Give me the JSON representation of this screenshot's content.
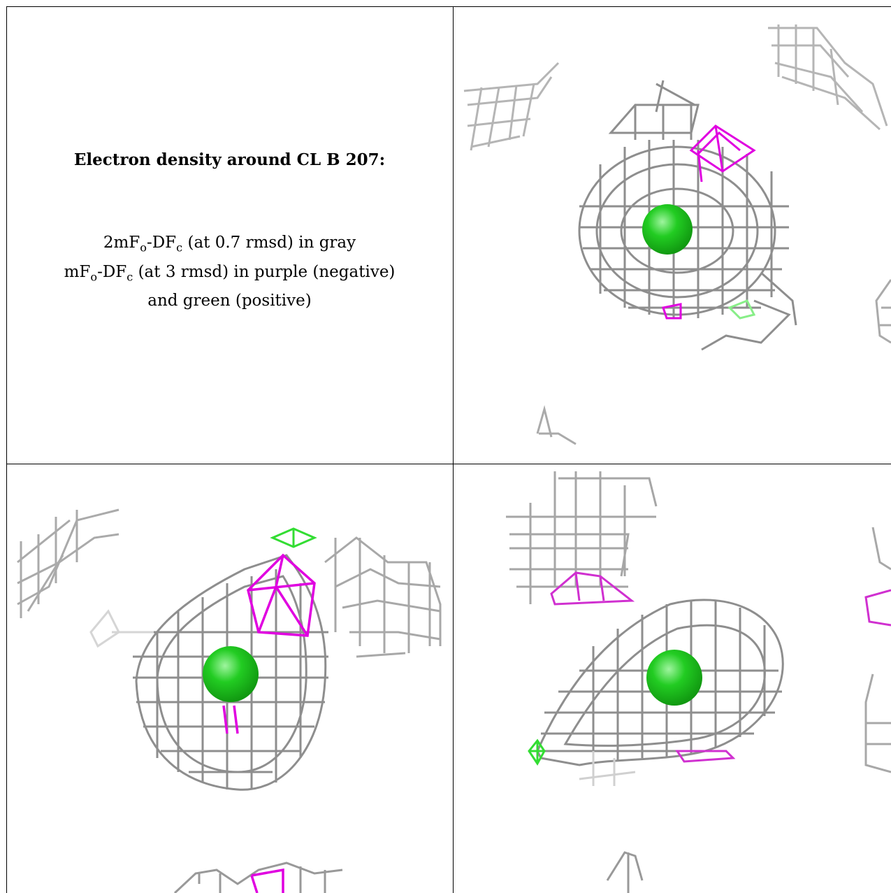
{
  "header": {
    "title": "Electron density around CL B 207:"
  },
  "legend": {
    "line1_pre": "2mF",
    "line1_sub1": "o",
    "line1_mid": "-DF",
    "line1_sub2": "c",
    "line1_post": " (at 0.7 rmsd) in gray",
    "line2_pre": "mF",
    "line2_sub1": "o",
    "line2_mid": "-DF",
    "line2_sub2": "c",
    "line2_post": " (at 3 rmsd) in purple (negative)",
    "line3": "and green (positive)"
  },
  "colors": {
    "mesh_gray": "#9a9a9a",
    "negative_purple": "#e000e0",
    "positive_green": "#33dd33",
    "atom_green": "#22cc22"
  },
  "views": [
    {
      "name": "view-top-right",
      "atom": "CL"
    },
    {
      "name": "view-bottom-left",
      "atom": "CL"
    },
    {
      "name": "view-bottom-right",
      "atom": "CL"
    }
  ]
}
